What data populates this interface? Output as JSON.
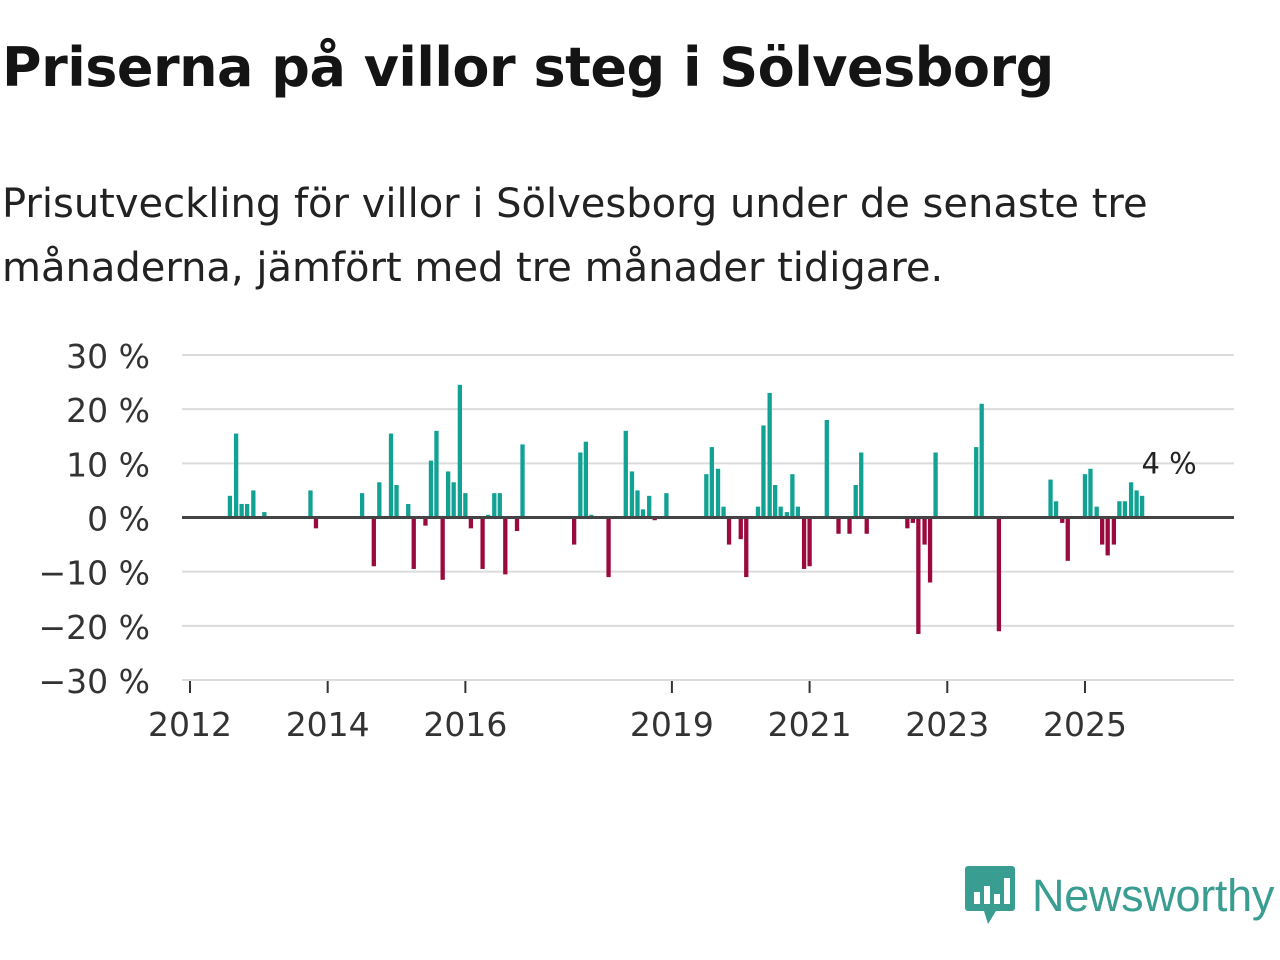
{
  "title": "Priserna på villor steg i Sölvesborg",
  "subtitle": "Prisutveckling för villor i Sölvesborg under de senaste tre månaderna, jämfört med tre månader tidigare.",
  "logo": {
    "text": "Newsworthy",
    "icon": "newsworthy-logo-icon"
  },
  "colors": {
    "positive": "#12a294",
    "negative": "#9b0a3e",
    "grid": "#dcdcdc",
    "axis": "#444444",
    "logo": "#3a9d92"
  },
  "chart_data": {
    "type": "bar",
    "title": "Priserna på villor steg i Sölvesborg",
    "xlabel": "",
    "ylabel": "",
    "ylim": [
      -30,
      30
    ],
    "yticks": [
      30,
      20,
      10,
      0,
      -10,
      -20,
      -30
    ],
    "ytick_labels": [
      "30 %",
      "20 %",
      "10 %",
      "0 %",
      "−10 %",
      "−20 %",
      "−30 %"
    ],
    "xlim": [
      2012.0,
      2026.7
    ],
    "xticks": [
      2012,
      2014,
      2016,
      2019,
      2021,
      2023,
      2025
    ],
    "xtick_labels": [
      "2012",
      "2014",
      "2016",
      "2019",
      "2021",
      "2023",
      "2025"
    ],
    "grid": true,
    "bar_width_months": 0.75,
    "last_value_label": "4 %",
    "series": [
      {
        "name": "Prisutveckling",
        "points": [
          {
            "x": 2012.58,
            "y": 4
          },
          {
            "x": 2012.67,
            "y": 15.5
          },
          {
            "x": 2012.75,
            "y": 2.5
          },
          {
            "x": 2012.83,
            "y": 2.5
          },
          {
            "x": 2012.92,
            "y": 5
          },
          {
            "x": 2013.08,
            "y": 1
          },
          {
            "x": 2013.75,
            "y": 5
          },
          {
            "x": 2013.83,
            "y": -2
          },
          {
            "x": 2014.5,
            "y": 4.5
          },
          {
            "x": 2014.67,
            "y": -9
          },
          {
            "x": 2014.75,
            "y": 6.5
          },
          {
            "x": 2014.92,
            "y": 15.5
          },
          {
            "x": 2015.0,
            "y": 6
          },
          {
            "x": 2015.17,
            "y": 2.5
          },
          {
            "x": 2015.25,
            "y": -9.5
          },
          {
            "x": 2015.42,
            "y": -1.5
          },
          {
            "x": 2015.5,
            "y": 10.5
          },
          {
            "x": 2015.58,
            "y": 16
          },
          {
            "x": 2015.67,
            "y": -11.5
          },
          {
            "x": 2015.75,
            "y": 8.5
          },
          {
            "x": 2015.83,
            "y": 6.5
          },
          {
            "x": 2015.92,
            "y": 24.5
          },
          {
            "x": 2016.0,
            "y": 4.5
          },
          {
            "x": 2016.08,
            "y": -2
          },
          {
            "x": 2016.25,
            "y": -9.5
          },
          {
            "x": 2016.33,
            "y": 0.5
          },
          {
            "x": 2016.42,
            "y": 4.5
          },
          {
            "x": 2016.5,
            "y": 4.5
          },
          {
            "x": 2016.58,
            "y": -10.5
          },
          {
            "x": 2016.75,
            "y": -2.5
          },
          {
            "x": 2016.83,
            "y": 13.5
          },
          {
            "x": 2017.58,
            "y": -5
          },
          {
            "x": 2017.67,
            "y": 12
          },
          {
            "x": 2017.75,
            "y": 14
          },
          {
            "x": 2017.83,
            "y": 0.5
          },
          {
            "x": 2018.08,
            "y": -11
          },
          {
            "x": 2018.33,
            "y": 16
          },
          {
            "x": 2018.42,
            "y": 8.5
          },
          {
            "x": 2018.5,
            "y": 5
          },
          {
            "x": 2018.58,
            "y": 1.5
          },
          {
            "x": 2018.67,
            "y": 4
          },
          {
            "x": 2018.75,
            "y": -0.5
          },
          {
            "x": 2018.92,
            "y": 4.5
          },
          {
            "x": 2019.5,
            "y": 8
          },
          {
            "x": 2019.58,
            "y": 13
          },
          {
            "x": 2019.67,
            "y": 9
          },
          {
            "x": 2019.75,
            "y": 2
          },
          {
            "x": 2019.83,
            "y": -5
          },
          {
            "x": 2020.0,
            "y": -4
          },
          {
            "x": 2020.08,
            "y": -11
          },
          {
            "x": 2020.25,
            "y": 2
          },
          {
            "x": 2020.33,
            "y": 17
          },
          {
            "x": 2020.42,
            "y": 23
          },
          {
            "x": 2020.5,
            "y": 6
          },
          {
            "x": 2020.58,
            "y": 2
          },
          {
            "x": 2020.67,
            "y": 1
          },
          {
            "x": 2020.75,
            "y": 8
          },
          {
            "x": 2020.83,
            "y": 2
          },
          {
            "x": 2020.92,
            "y": -9.5
          },
          {
            "x": 2021.0,
            "y": -9
          },
          {
            "x": 2021.25,
            "y": 18
          },
          {
            "x": 2021.42,
            "y": -3
          },
          {
            "x": 2021.58,
            "y": -3
          },
          {
            "x": 2021.67,
            "y": 6
          },
          {
            "x": 2021.75,
            "y": 12
          },
          {
            "x": 2021.83,
            "y": -3
          },
          {
            "x": 2022.42,
            "y": -2
          },
          {
            "x": 2022.5,
            "y": -1
          },
          {
            "x": 2022.58,
            "y": -21.5
          },
          {
            "x": 2022.67,
            "y": -5
          },
          {
            "x": 2022.75,
            "y": -12
          },
          {
            "x": 2022.83,
            "y": 12
          },
          {
            "x": 2023.42,
            "y": 13
          },
          {
            "x": 2023.5,
            "y": 21
          },
          {
            "x": 2023.75,
            "y": -21
          },
          {
            "x": 2024.5,
            "y": 7
          },
          {
            "x": 2024.58,
            "y": 3
          },
          {
            "x": 2024.67,
            "y": -1
          },
          {
            "x": 2024.75,
            "y": -8
          },
          {
            "x": 2025.0,
            "y": 8
          },
          {
            "x": 2025.08,
            "y": 9
          },
          {
            "x": 2025.17,
            "y": 2
          },
          {
            "x": 2025.25,
            "y": -5
          },
          {
            "x": 2025.33,
            "y": -7
          },
          {
            "x": 2025.42,
            "y": -5
          },
          {
            "x": 2025.5,
            "y": 3
          },
          {
            "x": 2025.58,
            "y": 3
          },
          {
            "x": 2025.67,
            "y": 6.5
          },
          {
            "x": 2025.75,
            "y": 5
          },
          {
            "x": 2025.83,
            "y": 4
          }
        ]
      }
    ]
  }
}
